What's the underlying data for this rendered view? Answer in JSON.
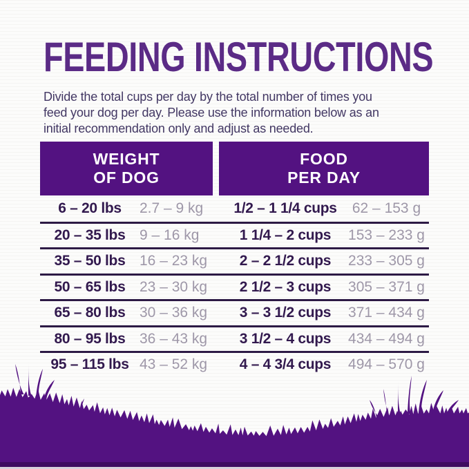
{
  "page": {
    "title": "FEEDING INSTRUCTIONS",
    "intro": {
      "line1": "Divide the total cups per day by the total number of times you",
      "line2": "feed your dog per day. Please use the information below as an",
      "line3": "initial recommendation only and adjust as needed."
    }
  },
  "table": {
    "headers": {
      "weight": {
        "line1": "WEIGHT",
        "line2": "OF DOG"
      },
      "food": {
        "line1": "FOOD",
        "line2": "PER DAY"
      }
    },
    "rows": [
      {
        "lbs": "6 – 20 lbs",
        "kg": "2.7 – 9 kg",
        "cups": "1/2 – 1 1/4 cups",
        "grams": "62 – 153 g"
      },
      {
        "lbs": "20 – 35 lbs",
        "kg": "9 – 16 kg",
        "cups": "1 1/4 – 2 cups",
        "grams": "153 – 233 g"
      },
      {
        "lbs": "35 – 50 lbs",
        "kg": "16 – 23 kg",
        "cups": "2 – 2 1/2 cups",
        "grams": "233 – 305 g"
      },
      {
        "lbs": "50 – 65 lbs",
        "kg": "23 – 30 kg",
        "cups": "2 1/2 – 3 cups",
        "grams": "305 – 371 g"
      },
      {
        "lbs": "65 – 80 lbs",
        "kg": "30 – 36 kg",
        "cups": "3 – 3 1/2 cups",
        "grams": "371 – 434 g"
      },
      {
        "lbs": "80 – 95 lbs",
        "kg": "36 – 43 kg",
        "cups": "3 1/2 – 4 cups",
        "grams": "434 – 494 g"
      },
      {
        "lbs": "95 – 115 lbs",
        "kg": "43 – 52 kg",
        "cups": "4 – 4 3/4 cups",
        "grams": "494 – 570 g"
      }
    ]
  },
  "colors": {
    "brand_purple": "#531281",
    "title_purple": "#5b2b86",
    "dark_text": "#32194e",
    "muted_text": "#9e97a8",
    "divider": "#2d1a45",
    "intro_text": "#423763",
    "header_text": "#ffffff"
  }
}
